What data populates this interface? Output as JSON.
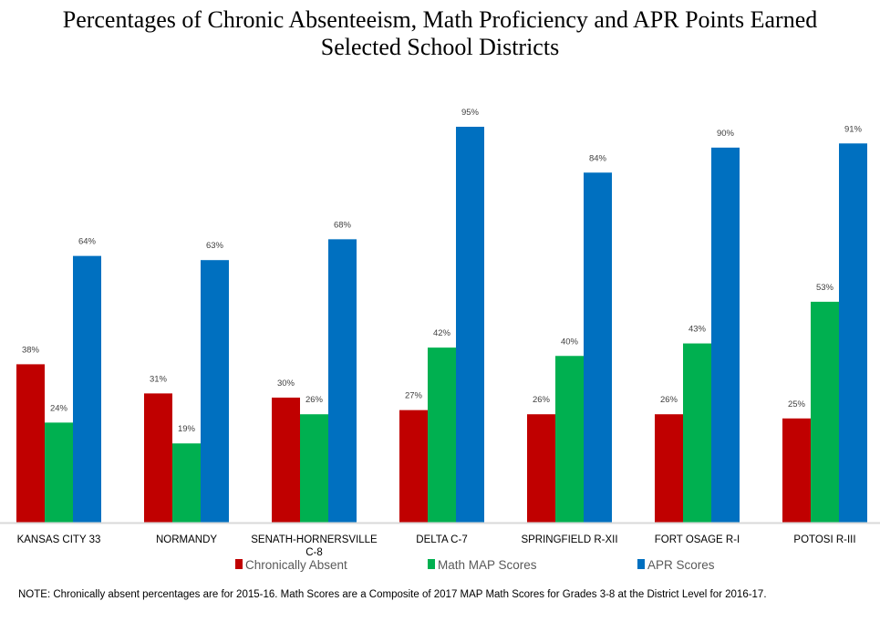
{
  "chart_data": {
    "type": "bar",
    "title": "Percentages of Chronic Absenteeism, Math Proficiency and APR Points Earned",
    "subtitle": "Selected School Districts",
    "categories": [
      [
        "KANSAS CITY 33"
      ],
      [
        "NORMANDY"
      ],
      [
        "SENATH-HORNERSVILLE",
        "C-8"
      ],
      [
        "DELTA C-7"
      ],
      [
        "SPRINGFIELD R-XII"
      ],
      [
        "FORT OSAGE R-I"
      ],
      [
        "POTOSI R-III"
      ]
    ],
    "series": [
      {
        "name": "Chronically Absent",
        "color": "#C00000",
        "values": [
          38,
          31,
          30,
          27,
          26,
          26,
          25
        ]
      },
      {
        "name": "Math MAP Scores",
        "color": "#00B050",
        "values": [
          24,
          19,
          26,
          42,
          40,
          43,
          53
        ]
      },
      {
        "name": "APR Scores",
        "color": "#0070C0",
        "values": [
          64,
          63,
          68,
          95,
          84,
          90,
          91
        ]
      }
    ],
    "value_suffix": "%",
    "ylim": [
      0,
      95
    ],
    "grid": false,
    "legend_position": "bottom",
    "note": "NOTE: Chronically absent percentages are for 2015-16. Math Scores are a Composite of 2017 MAP Math Scores for Grades 3-8 at the District Level for 2016-17."
  }
}
